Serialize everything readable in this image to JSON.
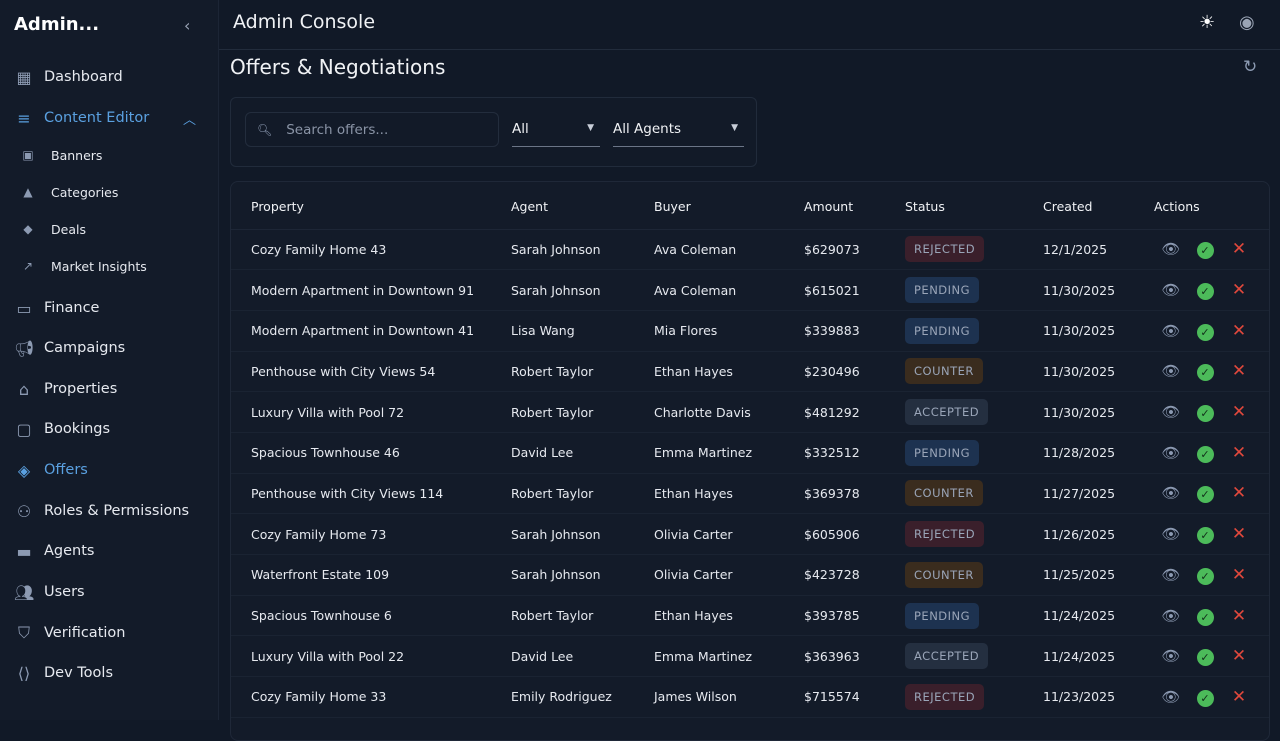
{
  "sidebar": {
    "brand": "Admin...",
    "items": [
      {
        "label": "Dashboard",
        "icon": "dashboard-icon"
      },
      {
        "label": "Content Editor",
        "icon": "edit-note-icon",
        "active": true,
        "expanded": true
      },
      {
        "label": "Banners",
        "icon": "slideshow-icon",
        "sub": true
      },
      {
        "label": "Categories",
        "icon": "category-icon",
        "sub": true
      },
      {
        "label": "Deals",
        "icon": "tag-icon",
        "sub": true
      },
      {
        "label": "Market Insights",
        "icon": "trending-up-icon",
        "sub": true
      },
      {
        "label": "Finance",
        "icon": "money-icon"
      },
      {
        "label": "Campaigns",
        "icon": "megaphone-icon"
      },
      {
        "label": "Properties",
        "icon": "home-icon"
      },
      {
        "label": "Bookings",
        "icon": "calendar-icon"
      },
      {
        "label": "Offers",
        "icon": "handshake-icon",
        "active": true
      },
      {
        "label": "Roles & Permissions",
        "icon": "group-icon"
      },
      {
        "label": "Agents",
        "icon": "briefcase-icon"
      },
      {
        "label": "Users",
        "icon": "people-icon"
      },
      {
        "label": "Verification",
        "icon": "shield-check-icon"
      },
      {
        "label": "Dev Tools",
        "icon": "code-icon"
      }
    ]
  },
  "header": {
    "title": "Admin Console"
  },
  "page": {
    "title": "Offers & Negotiations"
  },
  "filters": {
    "search_placeholder": "Search offers...",
    "search_value": "",
    "status": "All",
    "agent": "All Agents"
  },
  "table": {
    "columns": [
      "Property",
      "Agent",
      "Buyer",
      "Amount",
      "Status",
      "Created",
      "Actions"
    ],
    "rows": [
      [
        "Cozy Family Home 43",
        "Sarah Johnson",
        "Ava Coleman",
        "$629073",
        "REJECTED",
        "12/1/2025"
      ],
      [
        "Modern Apartment in Downtown 91",
        "Sarah Johnson",
        "Ava Coleman",
        "$615021",
        "PENDING",
        "11/30/2025"
      ],
      [
        "Modern Apartment in Downtown 41",
        "Lisa Wang",
        "Mia Flores",
        "$339883",
        "PENDING",
        "11/30/2025"
      ],
      [
        "Penthouse with City Views 54",
        "Robert Taylor",
        "Ethan Hayes",
        "$230496",
        "COUNTER",
        "11/30/2025"
      ],
      [
        "Luxury Villa with Pool 72",
        "Robert Taylor",
        "Charlotte Davis",
        "$481292",
        "ACCEPTED",
        "11/30/2025"
      ],
      [
        "Spacious Townhouse 46",
        "David Lee",
        "Emma Martinez",
        "$332512",
        "PENDING",
        "11/28/2025"
      ],
      [
        "Penthouse with City Views 114",
        "Robert Taylor",
        "Ethan Hayes",
        "$369378",
        "COUNTER",
        "11/27/2025"
      ],
      [
        "Cozy Family Home 73",
        "Sarah Johnson",
        "Olivia Carter",
        "$605906",
        "REJECTED",
        "11/26/2025"
      ],
      [
        "Waterfront Estate 109",
        "Sarah Johnson",
        "Olivia Carter",
        "$423728",
        "COUNTER",
        "11/25/2025"
      ],
      [
        "Spacious Townhouse 6",
        "Robert Taylor",
        "Ethan Hayes",
        "$393785",
        "PENDING",
        "11/24/2025"
      ],
      [
        "Luxury Villa with Pool 22",
        "David Lee",
        "Emma Martinez",
        "$363963",
        "ACCEPTED",
        "11/24/2025"
      ],
      [
        "Cozy Family Home 33",
        "Emily Rodriguez",
        "James Wilson",
        "$715574",
        "REJECTED",
        "11/23/2025"
      ]
    ]
  },
  "status_colors": {
    "REJECTED": "#3a1f2b",
    "PENDING": "#1d3250",
    "COUNTER": "#3a2c1e",
    "ACCEPTED": "#242f40"
  },
  "accent": "#5aa0e0"
}
